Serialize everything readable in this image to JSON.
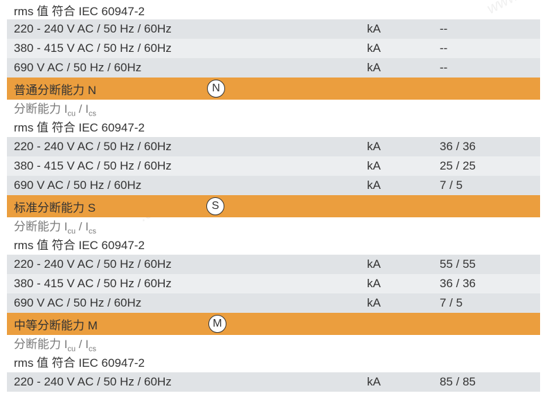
{
  "colors": {
    "orange": "#eb9e3e",
    "gray_dark": "#e0e3e6",
    "gray_light": "#eceef0",
    "white": "#ffffff",
    "text": "#333333",
    "sub_text": "#7a7a7a"
  },
  "typography": {
    "font_family": "Arial, Microsoft YaHei, sans-serif",
    "font_size": 17,
    "sub_font_size": 11
  },
  "intro": {
    "rms_line": "rms 值 符合 IEC 60947-2",
    "rows": [
      {
        "label": "220 - 240 V AC / 50 Hz / 60Hz",
        "unit": "kA",
        "value": "--"
      },
      {
        "label": "380 - 415 V AC / 50 Hz / 60Hz",
        "unit": "kA",
        "value": "--"
      },
      {
        "label": "690 V AC / 50 Hz / 60Hz",
        "unit": "kA",
        "value": "--"
      }
    ]
  },
  "sections": [
    {
      "title": "普通分断能力 N",
      "badge": "N",
      "sub1_prefix": "分断能力 I",
      "sub1_s1": "cu",
      "sub1_mid": " / I",
      "sub1_s2": "cs",
      "sub2": "rms 值 符合 IEC 60947-2",
      "rows": [
        {
          "label": "220 - 240 V AC / 50 Hz / 60Hz",
          "unit": "kA",
          "value": "36 / 36"
        },
        {
          "label": "380 - 415 V AC / 50 Hz / 60Hz",
          "unit": "kA",
          "value": "25 / 25"
        },
        {
          "label": "690 V AC / 50 Hz / 60Hz",
          "unit": "kA",
          "value": "7 / 5"
        }
      ]
    },
    {
      "title": "标准分断能力 S",
      "badge": "S",
      "sub1_prefix": "分断能力 I",
      "sub1_s1": "cu",
      "sub1_mid": " / I",
      "sub1_s2": "cs",
      "sub2": "rms 值 符合 IEC 60947-2",
      "rows": [
        {
          "label": "220 - 240 V AC / 50 Hz / 60Hz",
          "unit": "kA",
          "value": "55 / 55"
        },
        {
          "label": "380 - 415 V AC / 50 Hz / 60Hz",
          "unit": "kA",
          "value": "36 / 36"
        },
        {
          "label": "690 V AC / 50 Hz / 60Hz",
          "unit": "kA",
          "value": "7 / 5"
        }
      ]
    },
    {
      "title": "中等分断能力 M",
      "badge": "M",
      "sub1_prefix": "分断能力 I",
      "sub1_s1": "cu",
      "sub1_mid": " / I",
      "sub1_s2": "cs",
      "sub2": "rms 值 符合 IEC 60947-2",
      "rows": [
        {
          "label": "220 - 240 V AC / 50 Hz / 60Hz",
          "unit": "kA",
          "value": "85 / 85"
        }
      ]
    }
  ]
}
